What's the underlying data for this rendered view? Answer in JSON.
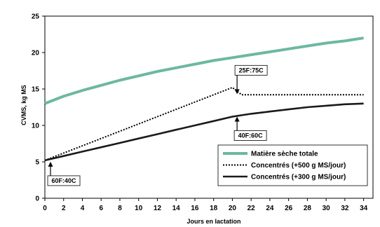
{
  "chart_data": {
    "type": "line",
    "xlabel": "Jours en lactation",
    "ylabel": "CVMS, kg MS",
    "xlim": [
      0,
      35
    ],
    "ylim": [
      0,
      25
    ],
    "xticks": [
      0,
      2,
      4,
      6,
      8,
      10,
      12,
      14,
      16,
      18,
      20,
      22,
      24,
      26,
      28,
      30,
      32,
      34
    ],
    "yticks": [
      0,
      5,
      10,
      15,
      20,
      25
    ],
    "grid": false,
    "legend_position": "bottom-right",
    "series": [
      {
        "name": "Matière sèche totale",
        "color": "#6db8a2",
        "style": "solid-thick",
        "x": [
          0,
          2,
          4,
          6,
          8,
          10,
          12,
          14,
          16,
          18,
          20,
          22,
          24,
          26,
          28,
          30,
          32,
          34
        ],
        "y": [
          13.0,
          14.0,
          14.8,
          15.5,
          16.2,
          16.8,
          17.4,
          17.9,
          18.4,
          18.9,
          19.3,
          19.7,
          20.1,
          20.5,
          20.9,
          21.3,
          21.6,
          22.0
        ]
      },
      {
        "name": "Concentrés (+500 g MS/jour)",
        "color": "#000000",
        "style": "dotted",
        "x": [
          0,
          2,
          4,
          6,
          8,
          10,
          12,
          14,
          16,
          18,
          20,
          21,
          24,
          28,
          32,
          34
        ],
        "y": [
          5.2,
          6.2,
          7.2,
          8.2,
          9.2,
          10.2,
          11.2,
          12.2,
          13.2,
          14.2,
          15.2,
          14.2,
          14.2,
          14.2,
          14.2,
          14.2
        ]
      },
      {
        "name": "Concentrés (+300 g MS/jour)",
        "color": "#1a1a1a",
        "style": "solid",
        "x": [
          0,
          2,
          4,
          6,
          8,
          10,
          12,
          14,
          16,
          18,
          20,
          22,
          24,
          26,
          28,
          30,
          32,
          34
        ],
        "y": [
          5.2,
          5.8,
          6.4,
          7.0,
          7.6,
          8.2,
          8.8,
          9.4,
          10.0,
          10.6,
          11.2,
          11.6,
          11.9,
          12.2,
          12.5,
          12.7,
          12.9,
          13.0
        ]
      }
    ],
    "annotations": [
      {
        "label": "25F:75C",
        "x": 20.5,
        "y": 14.2,
        "placement": "above"
      },
      {
        "label": "40F:60C",
        "x": 20.5,
        "y": 11.4,
        "placement": "below"
      },
      {
        "label": "60F:40C",
        "x": 0.6,
        "y": 5.2,
        "placement": "below"
      }
    ]
  }
}
